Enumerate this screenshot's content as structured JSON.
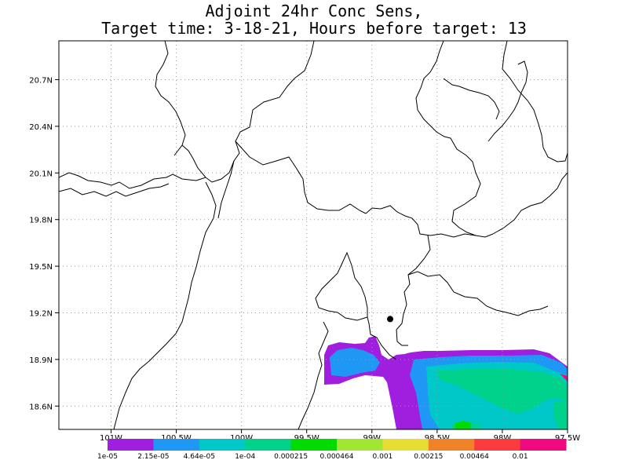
{
  "title": {
    "line1": "Adjoint 24hr Conc Sens,",
    "line2": "Target time: 3-18-21, Hours before target: 13"
  },
  "map": {
    "lat_ticks": [
      "20.7N",
      "20.4N",
      "20.1N",
      "19.8N",
      "19.5N",
      "19.2N",
      "18.9N",
      "18.6N"
    ],
    "lon_ticks": [
      "101W",
      "100.5W",
      "100W",
      "99.5W",
      "99W",
      "98.5W",
      "98W",
      "97.5W"
    ],
    "lat_values": [
      20.7,
      20.4,
      20.1,
      19.8,
      19.5,
      19.2,
      18.9,
      18.6
    ],
    "lon_values": [
      -101.0,
      -100.5,
      -100.0,
      -99.5,
      -99.0,
      -98.5,
      -98.0,
      -97.5
    ],
    "lat_range": [
      18.45,
      20.95
    ],
    "lon_range": [
      -101.4,
      -97.5
    ],
    "target_marker": {
      "lat": 19.16,
      "lon": -98.86
    }
  },
  "colorbar": {
    "colors": [
      "#a01fdf",
      "#1e97f5",
      "#00c8c8",
      "#00d28c",
      "#00dc00",
      "#a0e632",
      "#e6dc32",
      "#f08228",
      "#fa3c3c",
      "#f00a82"
    ],
    "labels": [
      "1e-05",
      "2.15e-05",
      "4.64e-05",
      "1e-04",
      "0.000215",
      "0.000464",
      "0.001",
      "0.00215",
      "0.00464",
      "0.01"
    ]
  }
}
